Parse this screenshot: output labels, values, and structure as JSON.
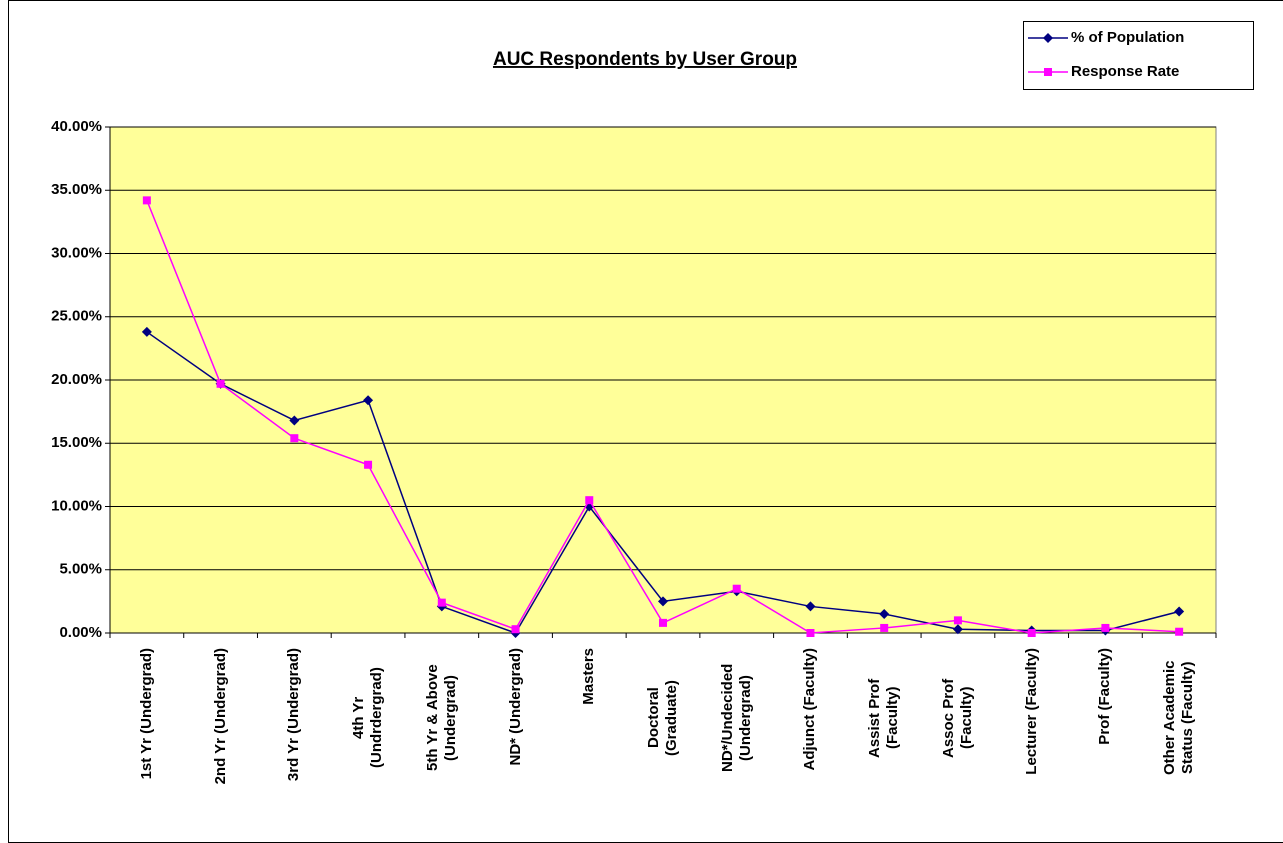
{
  "chart_data": {
    "type": "line",
    "title": "AUC Respondents by User Group",
    "categories": [
      "1st Yr (Undergrad)",
      "2nd Yr (Undergrad)",
      "3rd Yr (Undergrad)",
      "4th Yr (Undrdergrad)",
      "5th Yr & Above (Undergrad)",
      "ND* (Undergrad)",
      "Masters",
      "Doctoral (Graduate)",
      "ND*/Undecided (Undergrad)",
      "Adjunct (Faculty)",
      "Assist Prof (Faculty)",
      "Assoc Prof (Faculty)",
      "Lecturer (Faculty)",
      "Prof (Faculty)",
      "Other Academic Status (Faculty)"
    ],
    "series": [
      {
        "name": "% of Population",
        "color": "#000080",
        "marker": "diamond",
        "values": [
          23.8,
          19.7,
          16.8,
          18.4,
          2.1,
          0.0,
          10.0,
          2.5,
          3.3,
          2.1,
          1.5,
          0.3,
          0.2,
          0.2,
          1.7
        ]
      },
      {
        "name": "Response Rate",
        "color": "#ff00ff",
        "marker": "square",
        "values": [
          34.2,
          19.7,
          15.4,
          13.3,
          2.4,
          0.3,
          10.5,
          0.8,
          3.5,
          0.0,
          0.4,
          1.0,
          0.0,
          0.4,
          0.1
        ]
      }
    ],
    "ylim": [
      0,
      40
    ],
    "yticks": [
      {
        "value": 0,
        "label": "0.00%"
      },
      {
        "value": 5,
        "label": "5.00%"
      },
      {
        "value": 10,
        "label": "10.00%"
      },
      {
        "value": 15,
        "label": "15.00%"
      },
      {
        "value": 20,
        "label": "20.00%"
      },
      {
        "value": 25,
        "label": "25.00%"
      },
      {
        "value": 30,
        "label": "30.00%"
      },
      {
        "value": 35,
        "label": "35.00%"
      },
      {
        "value": 40,
        "label": "40.00%"
      }
    ],
    "grid": true,
    "legend": "top-right"
  }
}
